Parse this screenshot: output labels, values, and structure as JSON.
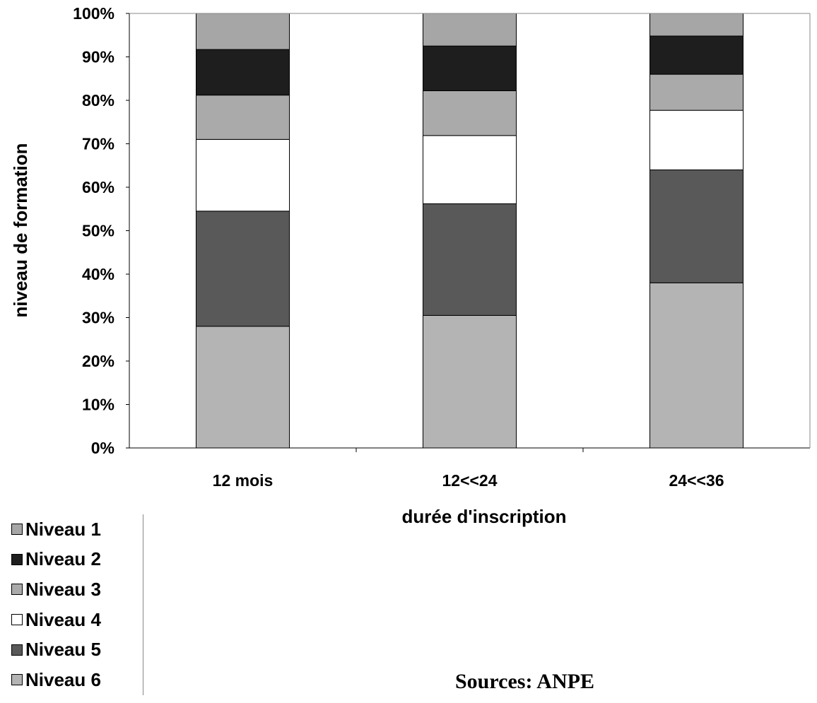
{
  "chart_data": {
    "type": "bar",
    "stacked": true,
    "percent_stacked": true,
    "categories": [
      "12 mois",
      "12<<24",
      "24<<36"
    ],
    "series": [
      {
        "name": "Niveau 6",
        "values": [
          28,
          30.5,
          38
        ],
        "color": "#b4b4b4"
      },
      {
        "name": "Niveau 5",
        "values": [
          26.5,
          25.7,
          26
        ],
        "color": "#595959"
      },
      {
        "name": "Niveau 4",
        "values": [
          16.5,
          15.7,
          13.7
        ],
        "color": "#ffffff"
      },
      {
        "name": "Niveau 3",
        "values": [
          10.2,
          10.3,
          8.3
        ],
        "color": "#aaaaaa"
      },
      {
        "name": "Niveau 2",
        "values": [
          10.5,
          10.3,
          8.8
        ],
        "color": "#1e1e1e"
      },
      {
        "name": "Niveau 1",
        "values": [
          8.3,
          7.5,
          5.2
        ],
        "color": "#a6a6a6"
      }
    ],
    "xlabel": "durée d'inscription",
    "ylabel": "niveau de formation",
    "ylim": [
      0,
      100
    ],
    "yticks": [
      "0%",
      "10%",
      "20%",
      "30%",
      "40%",
      "50%",
      "60%",
      "70%",
      "80%",
      "90%",
      "100%"
    ],
    "legend_position": "bottom-left",
    "grid": false
  },
  "legend": {
    "items": [
      {
        "label": "Niveau 1",
        "color": "#a6a6a6"
      },
      {
        "label": "Niveau 2",
        "color": "#1e1e1e"
      },
      {
        "label": "Niveau 3",
        "color": "#aaaaaa"
      },
      {
        "label": "Niveau 4",
        "color": "#ffffff"
      },
      {
        "label": "Niveau 5",
        "color": "#595959"
      },
      {
        "label": "Niveau 6",
        "color": "#b4b4b4"
      }
    ]
  },
  "source_text": "Sources: ANPE"
}
